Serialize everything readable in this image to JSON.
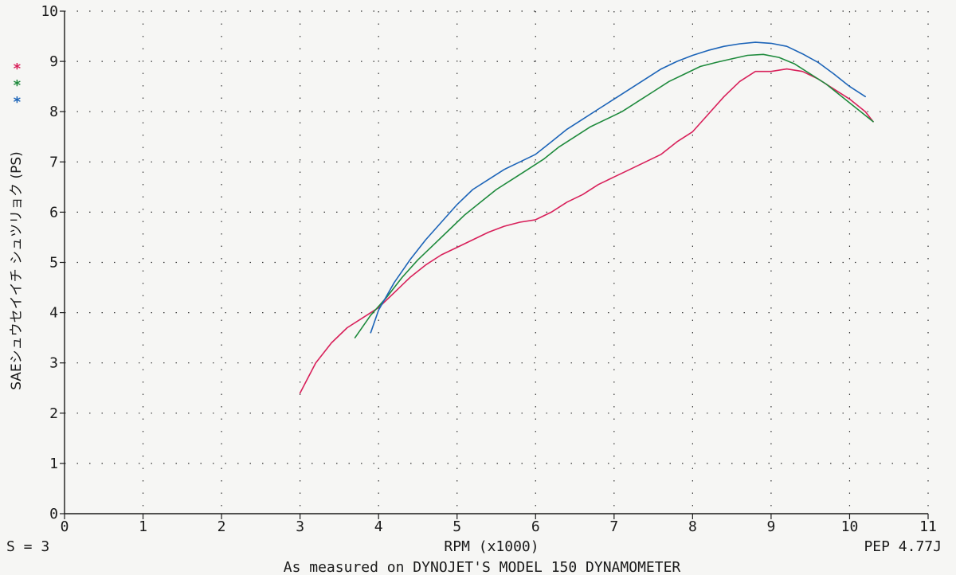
{
  "chart_data": {
    "type": "line",
    "xlabel": "RPM (x1000)",
    "ylabel": "SAEシュウセイイチ シュツリョク (PS)",
    "xlim": [
      0,
      11
    ],
    "ylim": [
      0,
      10
    ],
    "x_ticks": [
      "0",
      "1",
      "2",
      "3",
      "4",
      "5",
      "6",
      "7",
      "8",
      "9",
      "10",
      "11"
    ],
    "y_ticks": [
      "0",
      "1",
      "2",
      "3",
      "4",
      "5",
      "6",
      "7",
      "8",
      "9",
      "10"
    ],
    "grid": "dotted",
    "legend_markers": [
      {
        "symbol": "*",
        "color": "#d8205a"
      },
      {
        "symbol": "*",
        "color": "#1e8a3c"
      },
      {
        "symbol": "*",
        "color": "#1c64b8"
      }
    ],
    "series": [
      {
        "color": "#d8205a",
        "x": [
          3.0,
          3.2,
          3.4,
          3.6,
          3.8,
          4.0,
          4.2,
          4.4,
          4.6,
          4.8,
          5.0,
          5.2,
          5.4,
          5.6,
          5.8,
          6.0,
          6.2,
          6.4,
          6.6,
          6.8,
          7.0,
          7.2,
          7.4,
          7.6,
          7.8,
          8.0,
          8.2,
          8.4,
          8.6,
          8.8,
          9.0,
          9.2,
          9.4,
          9.6,
          9.8,
          10.0,
          10.2,
          10.3
        ],
        "y": [
          2.4,
          3.0,
          3.4,
          3.7,
          3.9,
          4.1,
          4.4,
          4.7,
          4.95,
          5.15,
          5.3,
          5.45,
          5.6,
          5.72,
          5.8,
          5.85,
          6.0,
          6.2,
          6.35,
          6.55,
          6.7,
          6.85,
          7.0,
          7.15,
          7.4,
          7.6,
          7.95,
          8.3,
          8.6,
          8.8,
          8.8,
          8.85,
          8.8,
          8.65,
          8.45,
          8.25,
          8.0,
          7.8
        ]
      },
      {
        "color": "#1e8a3c",
        "x": [
          3.7,
          3.9,
          4.1,
          4.3,
          4.5,
          4.7,
          4.9,
          5.1,
          5.3,
          5.5,
          5.7,
          5.9,
          6.1,
          6.3,
          6.5,
          6.7,
          6.9,
          7.1,
          7.3,
          7.5,
          7.7,
          7.9,
          8.1,
          8.3,
          8.5,
          8.7,
          8.9,
          9.1,
          9.3,
          9.5,
          9.7,
          9.9,
          10.1,
          10.3
        ],
        "y": [
          3.5,
          3.95,
          4.3,
          4.7,
          5.05,
          5.35,
          5.65,
          5.95,
          6.2,
          6.45,
          6.65,
          6.85,
          7.05,
          7.3,
          7.5,
          7.7,
          7.85,
          8.0,
          8.2,
          8.4,
          8.6,
          8.75,
          8.9,
          8.98,
          9.05,
          9.12,
          9.14,
          9.08,
          8.95,
          8.75,
          8.55,
          8.3,
          8.05,
          7.8
        ]
      },
      {
        "color": "#1c64b8",
        "x": [
          3.9,
          4.0,
          4.2,
          4.4,
          4.6,
          4.8,
          5.0,
          5.2,
          5.4,
          5.6,
          5.8,
          6.0,
          6.2,
          6.4,
          6.6,
          6.8,
          7.0,
          7.2,
          7.4,
          7.6,
          7.8,
          8.0,
          8.2,
          8.4,
          8.6,
          8.8,
          9.0,
          9.2,
          9.4,
          9.6,
          9.8,
          10.0,
          10.2
        ],
        "y": [
          3.6,
          4.05,
          4.6,
          5.05,
          5.45,
          5.8,
          6.15,
          6.45,
          6.65,
          6.85,
          7.0,
          7.15,
          7.4,
          7.65,
          7.85,
          8.05,
          8.25,
          8.45,
          8.65,
          8.85,
          9.0,
          9.12,
          9.22,
          9.3,
          9.35,
          9.38,
          9.36,
          9.3,
          9.15,
          8.98,
          8.75,
          8.5,
          8.3
        ]
      }
    ]
  },
  "footer": {
    "left": "S = 3",
    "right": "PEP 4.77J",
    "center": "As measured on DYNOJET'S MODEL 150 DYNAMOMETER"
  }
}
